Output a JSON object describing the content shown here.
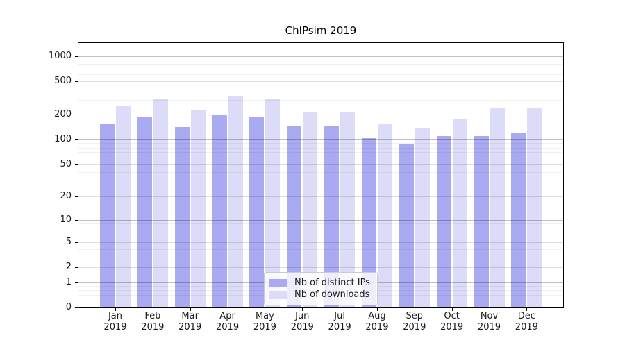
{
  "chart_data": {
    "type": "bar",
    "title": "ChIPsim 2019",
    "categories": [
      "Jan\n2019",
      "Feb\n2019",
      "Mar\n2019",
      "Apr\n2019",
      "May\n2019",
      "Jun\n2019",
      "Jul\n2019",
      "Aug\n2019",
      "Sep\n2019",
      "Oct\n2019",
      "Nov\n2019",
      "Dec\n2019"
    ],
    "series": [
      {
        "key": "ips",
        "name": "Nb of distinct IPs",
        "color": "#aaaaf2",
        "values": [
          152,
          190,
          141,
          196,
          190,
          148,
          148,
          103,
          87,
          110,
          110,
          121
        ]
      },
      {
        "key": "downloads",
        "name": "Nb of downloads",
        "color": "#dcdcf9",
        "values": [
          250,
          310,
          228,
          337,
          305,
          215,
          214,
          155,
          138,
          176,
          243,
          237
        ]
      }
    ],
    "xlabel": "",
    "ylabel": "",
    "y_scale": "log1p",
    "ylim": [
      0,
      1430
    ],
    "y_ticks": [
      0,
      1,
      2,
      5,
      10,
      20,
      50,
      100,
      200,
      500,
      1000
    ],
    "y_grid_major": [
      1,
      10,
      100,
      1000
    ],
    "y_grid_mid": [
      2,
      5,
      20,
      50,
      200,
      500
    ],
    "y_grid_minor": [
      0.2,
      0.4,
      0.6,
      0.8,
      3,
      4,
      6,
      7,
      8,
      9,
      30,
      40,
      60,
      70,
      80,
      90,
      300,
      400,
      600,
      700,
      800,
      900
    ],
    "grid": true,
    "legend": {
      "position": "lower center",
      "entries": [
        "Nb of distinct IPs",
        "Nb of downloads"
      ]
    }
  },
  "colors": {
    "background": "#ffffff",
    "axis": "#000000",
    "text": "#1a1a1a",
    "grid_major": "#c2c2c2",
    "grid_mid": "#dedede",
    "grid_minor": "#efefef",
    "legend_border": "#cccccc",
    "series_ips": "#aaaaf2",
    "series_downloads": "#dcdcf9"
  }
}
